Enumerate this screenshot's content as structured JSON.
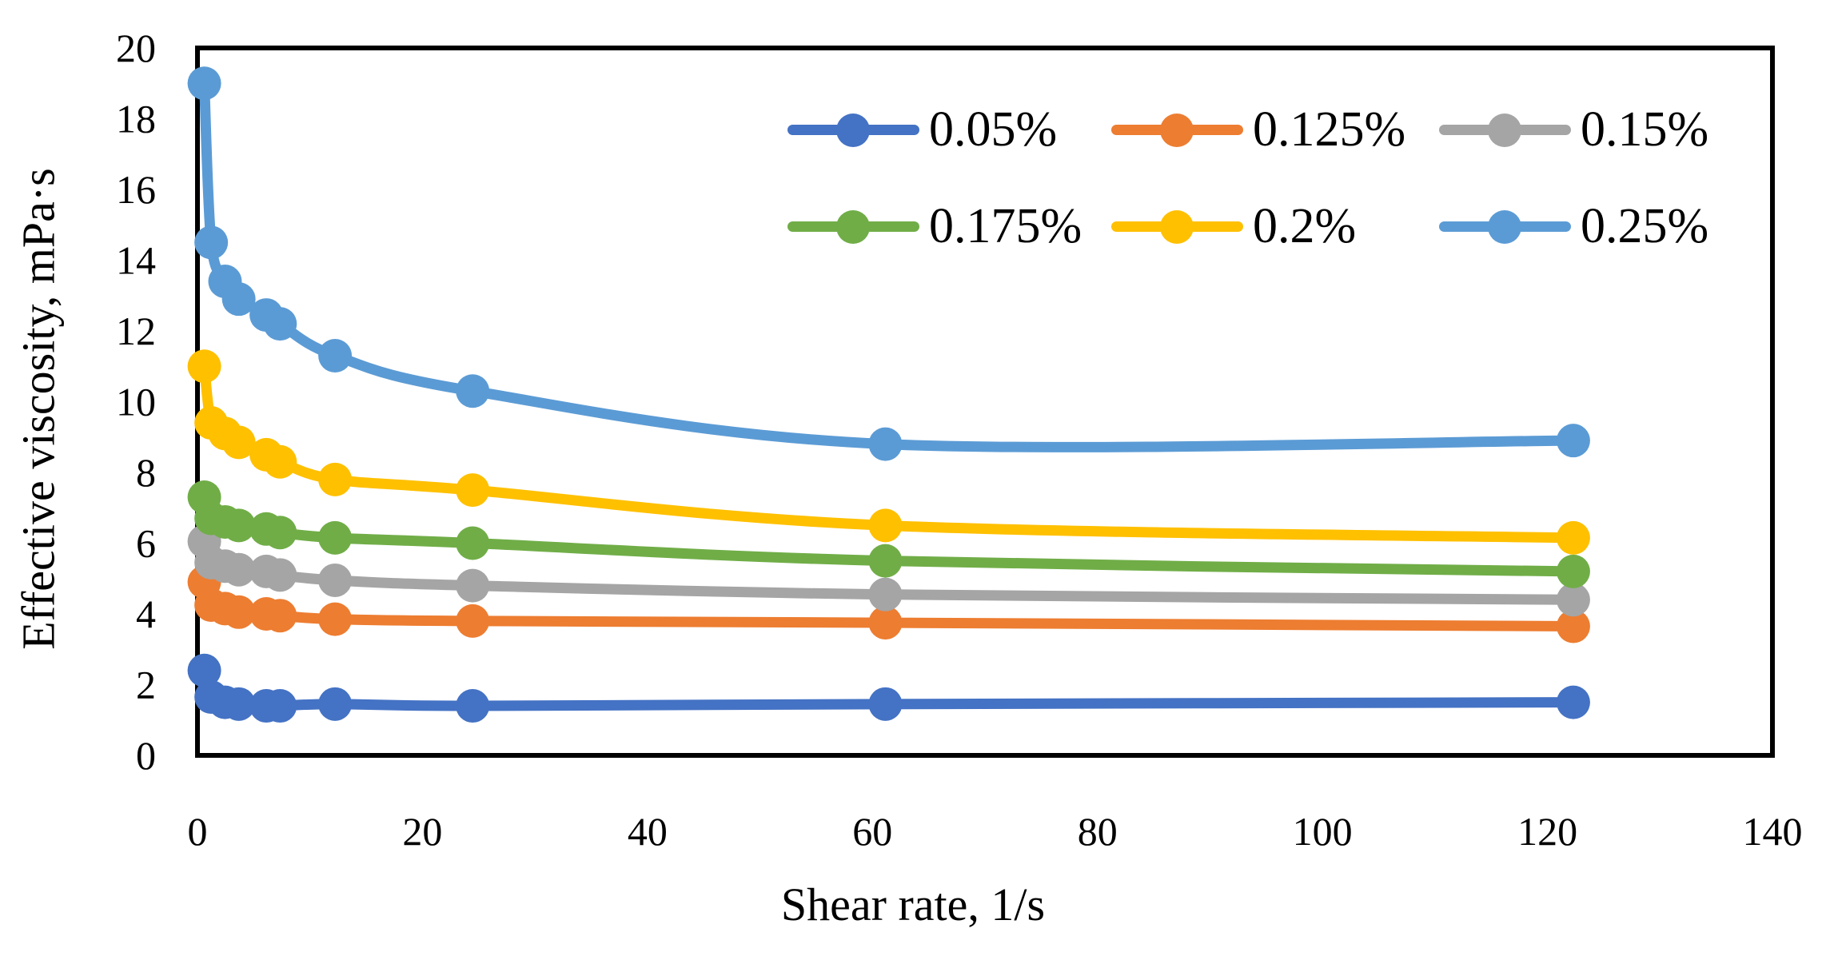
{
  "chart_data": {
    "type": "line",
    "title": "",
    "xlabel": "Shear rate, 1/s",
    "ylabel": "Effective viscosity, mPa·s",
    "xlim": [
      0,
      140
    ],
    "ylim": [
      0,
      20
    ],
    "x_ticks": [
      0,
      20,
      40,
      60,
      80,
      100,
      120,
      140
    ],
    "y_ticks": [
      0,
      2,
      4,
      6,
      8,
      10,
      12,
      14,
      16,
      18,
      20
    ],
    "grid": false,
    "legend_position": "inside top-right, two rows of three",
    "x": [
      0.61,
      1.22,
      2.45,
      3.67,
      6.12,
      7.34,
      12.23,
      24.46,
      61.15,
      122.3
    ],
    "series": [
      {
        "name": "0.05%",
        "color": "#4472C4",
        "values": [
          2.4,
          1.65,
          1.5,
          1.45,
          1.4,
          1.4,
          1.45,
          1.4,
          1.45,
          1.5
        ]
      },
      {
        "name": "0.125%",
        "color": "#ED7D31",
        "values": [
          4.9,
          4.25,
          4.15,
          4.05,
          4.0,
          3.95,
          3.85,
          3.8,
          3.75,
          3.65
        ]
      },
      {
        "name": "0.15%",
        "color": "#A5A5A5",
        "values": [
          6.05,
          5.45,
          5.35,
          5.25,
          5.2,
          5.1,
          4.95,
          4.8,
          4.55,
          4.4
        ]
      },
      {
        "name": "0.175%",
        "color": "#70AD47",
        "values": [
          7.3,
          6.7,
          6.6,
          6.5,
          6.4,
          6.3,
          6.15,
          6.0,
          5.5,
          5.2
        ]
      },
      {
        "name": "0.2%",
        "color": "#FFC000",
        "values": [
          11.0,
          9.4,
          9.1,
          8.85,
          8.5,
          8.3,
          7.8,
          7.5,
          6.5,
          6.15
        ]
      },
      {
        "name": "0.25%",
        "color": "#5B9BD5",
        "values": [
          19.0,
          14.5,
          13.4,
          12.9,
          12.45,
          12.2,
          11.3,
          10.3,
          8.8,
          8.9
        ]
      }
    ],
    "axis_color": "#000000",
    "background_color": "#FFFFFF"
  }
}
